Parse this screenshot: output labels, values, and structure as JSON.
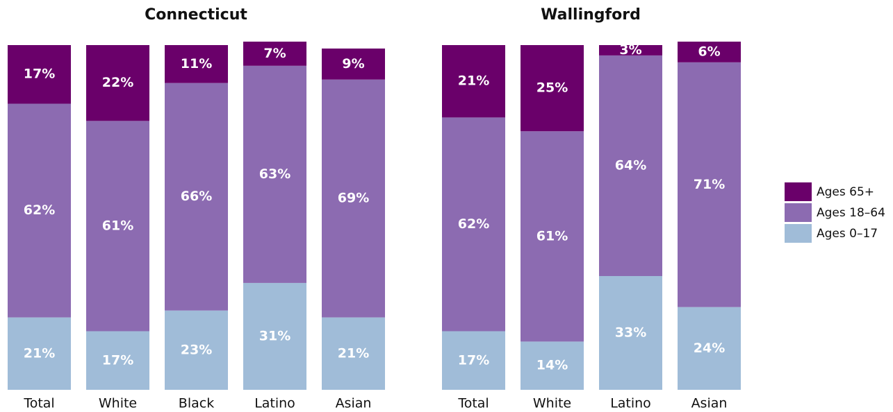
{
  "chart_data": [
    {
      "type": "stacked_bar",
      "title": "Connecticut",
      "categories": [
        "Total",
        "White",
        "Black",
        "Latino",
        "Asian"
      ],
      "ylim": [
        0,
        100
      ],
      "series": [
        {
          "name": "Ages 65+",
          "color": "#6a006a",
          "values": [
            17,
            22,
            11,
            7,
            9
          ],
          "value_labels": [
            "17%",
            "22%",
            "11%",
            "7%",
            "9%"
          ]
        },
        {
          "name": "Ages 18–64",
          "color": "#8c6bb1",
          "values": [
            62,
            61,
            66,
            63,
            69
          ],
          "value_labels": [
            "62%",
            "61%",
            "66%",
            "63%",
            "69%"
          ]
        },
        {
          "name": "Ages 0–17",
          "color": "#a0bcd8",
          "values": [
            21,
            17,
            23,
            31,
            21
          ],
          "value_labels": [
            "21%",
            "17%",
            "23%",
            "31%",
            "21%"
          ]
        }
      ]
    },
    {
      "type": "stacked_bar",
      "title": "Wallingford",
      "categories": [
        "Total",
        "White",
        "Latino",
        "Asian"
      ],
      "ylim": [
        0,
        100
      ],
      "series": [
        {
          "name": "Ages 65+",
          "color": "#6a006a",
          "values": [
            21,
            25,
            3,
            6
          ],
          "value_labels": [
            "21%",
            "25%",
            "3%",
            "6%"
          ]
        },
        {
          "name": "Ages 18–64",
          "color": "#8c6bb1",
          "values": [
            62,
            61,
            64,
            71
          ],
          "value_labels": [
            "62%",
            "61%",
            "64%",
            "71%"
          ]
        },
        {
          "name": "Ages 0–17",
          "color": "#a0bcd8",
          "values": [
            17,
            14,
            33,
            24
          ],
          "value_labels": [
            "17%",
            "14%",
            "33%",
            "24%"
          ]
        }
      ]
    }
  ]
}
